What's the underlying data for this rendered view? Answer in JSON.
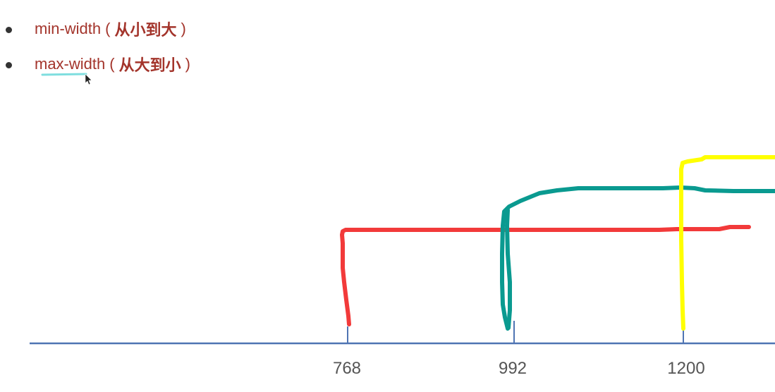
{
  "bullets": [
    {
      "code": "min-width",
      "open": "(",
      "note": "从小到大",
      "close": ")"
    },
    {
      "code": "max-width",
      "open": "(",
      "note": "从大到小",
      "close": ")"
    }
  ],
  "axis": {
    "ticks": [
      "768",
      "992",
      "1200"
    ]
  },
  "colors": {
    "text": "#a3342b",
    "axis": "#4f74b3",
    "red_range": "#f23a3a",
    "teal_range": "#0a9a90",
    "yellow_range": "#ffff00",
    "underline": "#7fdedf"
  }
}
